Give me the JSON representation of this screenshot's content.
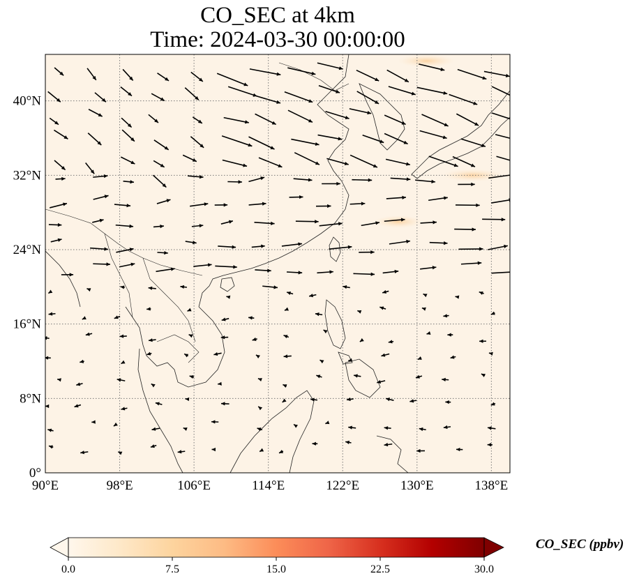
{
  "title": {
    "line1": "CO_SEC at 4km",
    "line2": "Time: 2024-03-30 00:00:00"
  },
  "map": {
    "projection": "PlateCarree",
    "lon_range": [
      90,
      140
    ],
    "lat_range": [
      0,
      45
    ],
    "lon_ticks": [
      {
        "value": 90,
        "label": "90°E"
      },
      {
        "value": 98,
        "label": "98°E"
      },
      {
        "value": 106,
        "label": "106°E"
      },
      {
        "value": 114,
        "label": "114°E"
      },
      {
        "value": 122,
        "label": "122°E"
      },
      {
        "value": 130,
        "label": "130°E"
      },
      {
        "value": 138,
        "label": "138°E"
      }
    ],
    "lat_ticks": [
      {
        "value": 0,
        "label": "0°"
      },
      {
        "value": 8,
        "label": "8°N"
      },
      {
        "value": 16,
        "label": "16°N"
      },
      {
        "value": 24,
        "label": "24°N"
      },
      {
        "value": 32,
        "label": "32°N"
      },
      {
        "value": 40,
        "label": "40°N"
      }
    ],
    "gridlines": true,
    "gridline_style": "dotted",
    "field_variable": "CO_SEC",
    "field_background": "#fdf3e6",
    "colors": {
      "ocean_tint": "#fdf3e6",
      "plume": "#fbd9ae",
      "coastline": "#000000",
      "vector": "#000000"
    },
    "wind_vectors": {
      "present": true,
      "note_regions": [
        {
          "name": "northeast",
          "lon": [
            110,
            140
          ],
          "lat": [
            32,
            45
          ],
          "direction": "east-southeast",
          "strength": "strong"
        },
        {
          "name": "mid-latitudes",
          "lon": [
            90,
            140
          ],
          "lat": [
            20,
            32
          ],
          "direction": "east",
          "strength": "moderate"
        },
        {
          "name": "tropics",
          "lon": [
            90,
            130
          ],
          "lat": [
            0,
            20
          ],
          "direction": "west",
          "strength": "weak"
        }
      ]
    },
    "plumes": [
      {
        "lon": 131,
        "lat": 44.3,
        "value": 5
      },
      {
        "lon": 136,
        "lat": 32,
        "value": 6
      },
      {
        "lon": 128,
        "lat": 27,
        "value": 3
      }
    ]
  },
  "colorbar": {
    "label": "CO_SEC (ppbv)",
    "min": 0.0,
    "max": 30.0,
    "extend": "both",
    "colormap": "OrRd",
    "ticks": [
      "0.0",
      "7.5",
      "15.0",
      "22.5",
      "30.0"
    ],
    "stops": [
      "#fff7ec",
      "#fee8c8",
      "#fdd49e",
      "#fdbb84",
      "#fc8d59",
      "#ef6548",
      "#d7301f",
      "#b30000",
      "#7f0000"
    ]
  }
}
